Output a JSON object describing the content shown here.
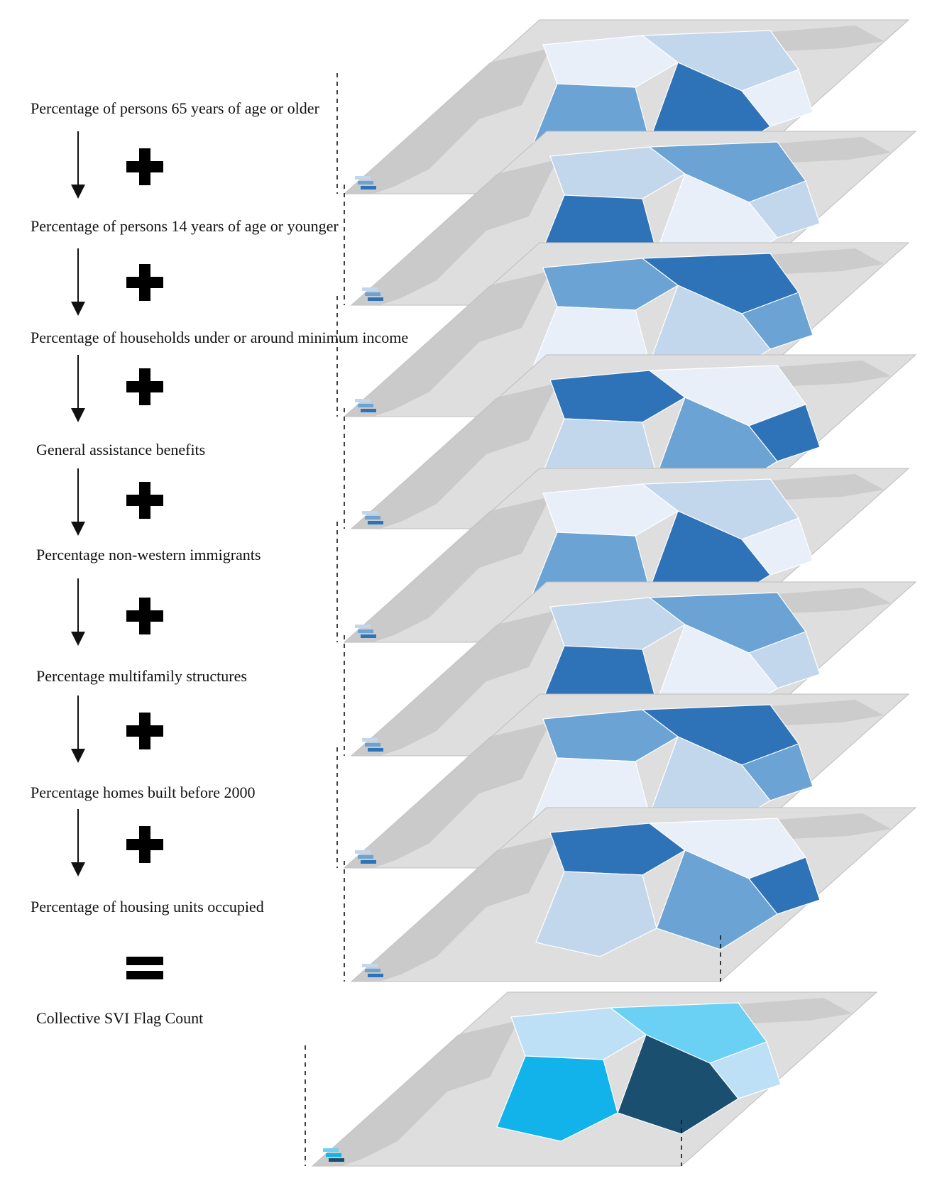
{
  "steps": [
    {
      "label": "Percentage of persons 65 years of age or older"
    },
    {
      "label": "Percentage of persons 14 years of age or younger"
    },
    {
      "label": "Percentage of households under or around minimum income"
    },
    {
      "label": "General assistance benefits"
    },
    {
      "label": "Percentage non-western immigrants"
    },
    {
      "label": "Percentage multifamily structures"
    },
    {
      "label": "Percentage homes built before 2000"
    },
    {
      "label": "Percentage of housing units occupied"
    }
  ],
  "result": {
    "label": "Collective SVI Flag Count"
  },
  "colors": {
    "plane": "#dedede",
    "water": "#c4c4c4",
    "blues": [
      "#e8eff9",
      "#c3d7ec",
      "#6aa3d4",
      "#2e72b8"
    ],
    "result_blues": [
      "#bee0f6",
      "#6ad0f4",
      "#11b3ea",
      "#1b4f70"
    ]
  },
  "operators": {
    "plus": "plus-icon",
    "equals": "equals-icon",
    "arrow": "arrow-down-icon"
  }
}
